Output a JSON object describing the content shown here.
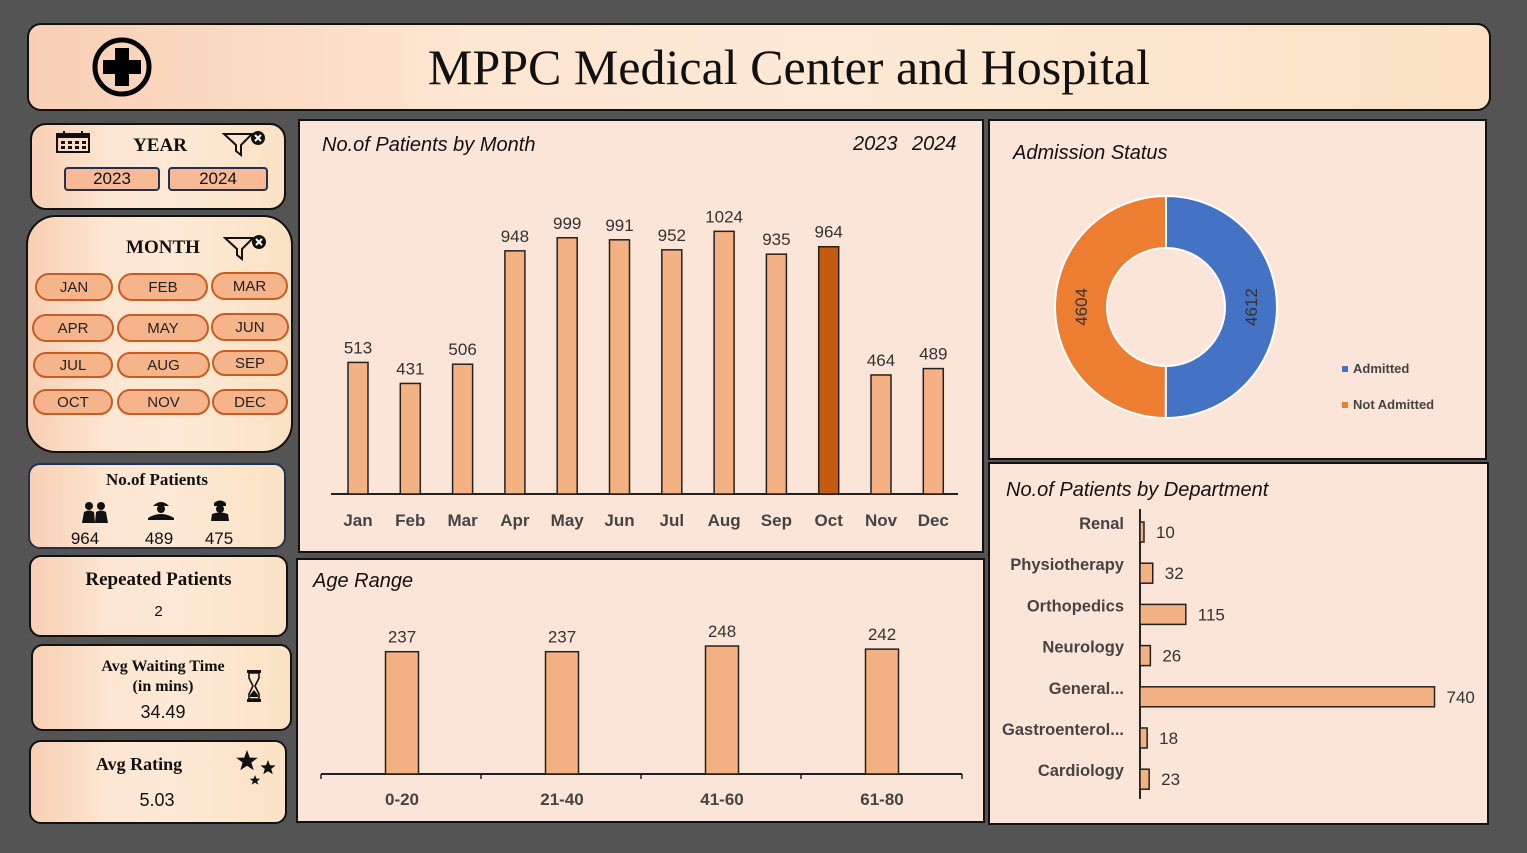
{
  "header": {
    "title": "MPPC Medical Center and Hospital"
  },
  "year_slicer": {
    "title": "YEAR",
    "options": [
      "2023",
      "2024"
    ]
  },
  "month_slicer": {
    "title": "MONTH",
    "options": [
      "JAN",
      "FEB",
      "MAR",
      "APR",
      "MAY",
      "JUN",
      "JUL",
      "AUG",
      "SEP",
      "OCT",
      "NOV",
      "DEC"
    ]
  },
  "patients_card": {
    "title": "No.of Patients",
    "values": [
      "964",
      "489",
      "475"
    ]
  },
  "repeated_card": {
    "title": "Repeated Patients",
    "value": "2"
  },
  "waiting_card": {
    "title_line1": "Avg Waiting Time",
    "title_line2": "(in mins)",
    "value": "34.49"
  },
  "rating_card": {
    "title": "Avg Rating",
    "value": "5.03"
  },
  "colors": {
    "bar": "#f4b183",
    "bar_selected": "#c55a11",
    "admitted": "#4472c4",
    "not_admitted": "#ed7d31"
  },
  "chart_data": [
    {
      "id": "month",
      "type": "bar",
      "title": "No.of Patients by Month",
      "year_labels": [
        "2023",
        "2024"
      ],
      "categories": [
        "Jan",
        "Feb",
        "Mar",
        "Apr",
        "May",
        "Jun",
        "Jul",
        "Aug",
        "Sep",
        "Oct",
        "Nov",
        "Dec"
      ],
      "values": [
        513,
        431,
        506,
        948,
        999,
        991,
        952,
        1024,
        935,
        964,
        464,
        489
      ],
      "highlight": "Oct",
      "ylim": [
        0,
        1200
      ]
    },
    {
      "id": "age",
      "type": "bar",
      "title": "Age Range",
      "categories": [
        "0-20",
        "21-40",
        "41-60",
        "61-80"
      ],
      "values": [
        237,
        237,
        248,
        242
      ]
    },
    {
      "id": "admission",
      "type": "pie",
      "title": "Admission Status",
      "labels": [
        "Admitted",
        "Not Admitted"
      ],
      "values": [
        4612,
        4604
      ],
      "legend": "right"
    },
    {
      "id": "department",
      "type": "bar",
      "orientation": "horizontal",
      "title": "No.of Patients by Department",
      "categories": [
        "Renal",
        "Physiotherapy",
        "Orthopedics",
        "Neurology",
        "General...",
        "Gastroenterol...",
        "Cardiology"
      ],
      "values": [
        10,
        32,
        115,
        26,
        740,
        18,
        23
      ]
    }
  ]
}
